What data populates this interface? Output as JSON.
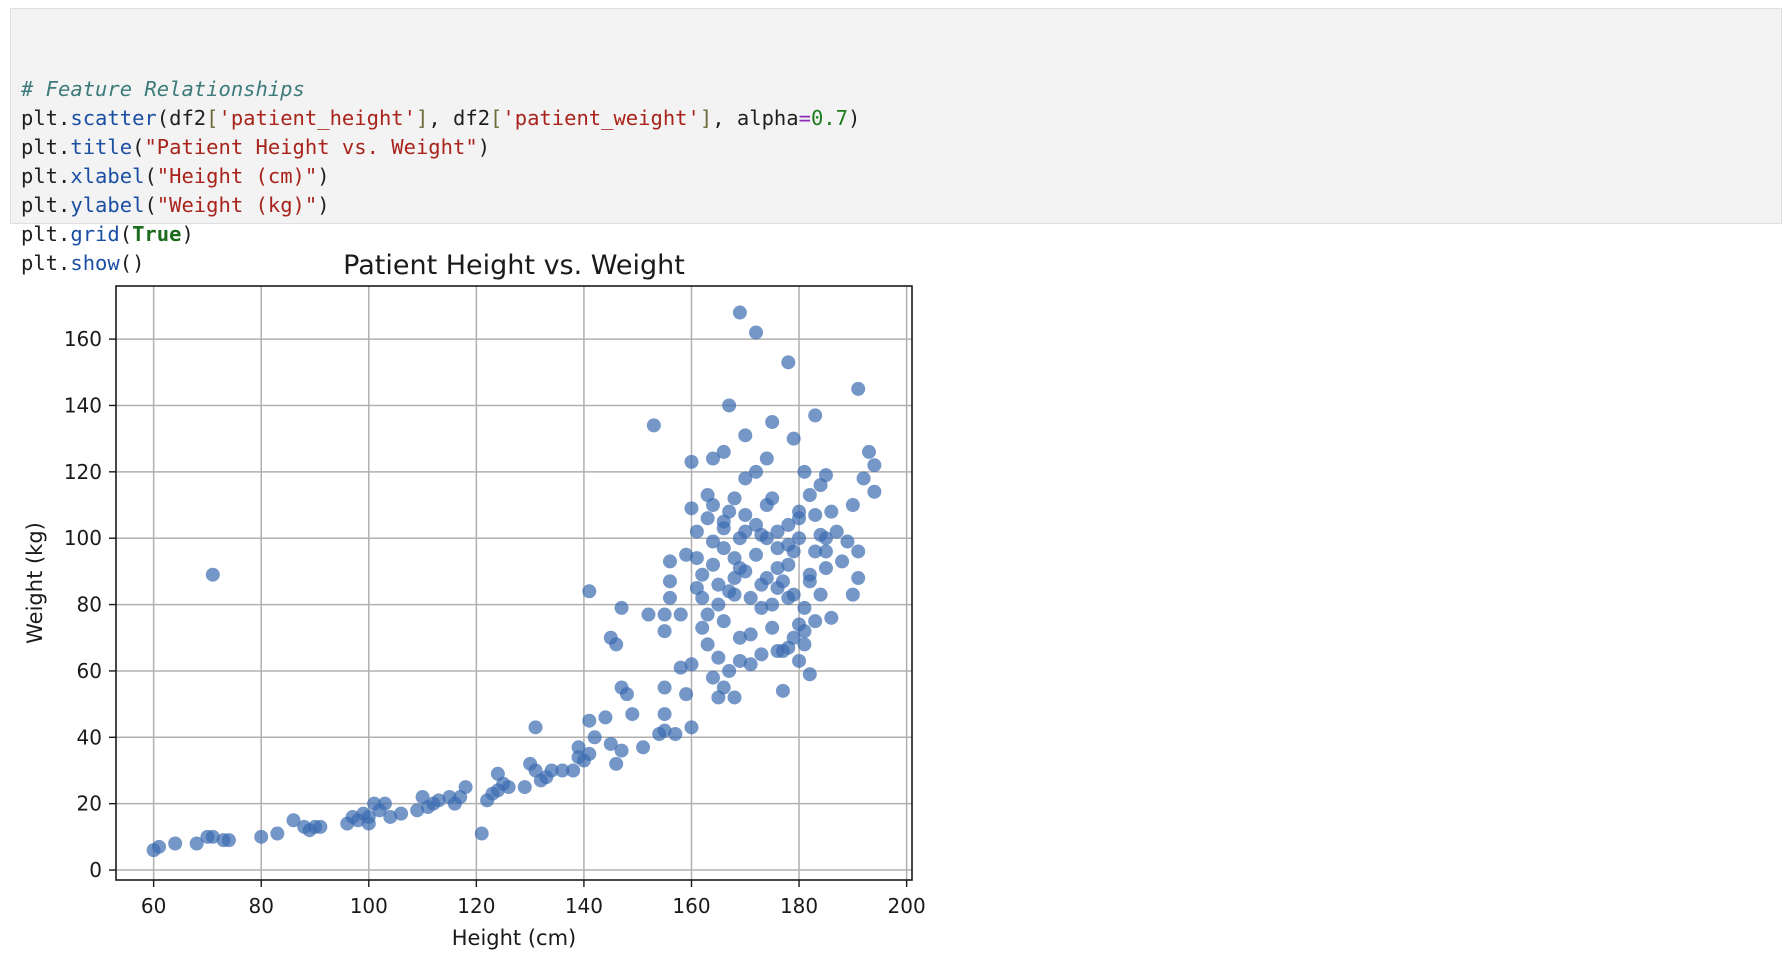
{
  "code_cell": {
    "lines": [
      [
        {
          "t": "# Feature Relationships",
          "c": "tok-comment"
        }
      ],
      [
        {
          "t": "plt",
          "c": ""
        },
        {
          "t": ".",
          "c": ""
        },
        {
          "t": "scatter",
          "c": "tok-fn"
        },
        {
          "t": "(df2",
          "c": ""
        },
        {
          "t": "[",
          "c": "tok-brk"
        },
        {
          "t": "'patient_height'",
          "c": "tok-str"
        },
        {
          "t": "]",
          "c": "tok-brk"
        },
        {
          "t": ", df2",
          "c": ""
        },
        {
          "t": "[",
          "c": "tok-brk"
        },
        {
          "t": "'patient_weight'",
          "c": "tok-str"
        },
        {
          "t": "]",
          "c": "tok-brk"
        },
        {
          "t": ", alpha",
          "c": ""
        },
        {
          "t": "=",
          "c": "tok-op"
        },
        {
          "t": "0.7",
          "c": "tok-num"
        },
        {
          "t": ")",
          "c": ""
        }
      ],
      [
        {
          "t": "plt",
          "c": ""
        },
        {
          "t": ".",
          "c": ""
        },
        {
          "t": "title",
          "c": "tok-fn"
        },
        {
          "t": "(",
          "c": ""
        },
        {
          "t": "\"Patient Height vs. Weight\"",
          "c": "tok-str"
        },
        {
          "t": ")",
          "c": ""
        }
      ],
      [
        {
          "t": "plt",
          "c": ""
        },
        {
          "t": ".",
          "c": ""
        },
        {
          "t": "xlabel",
          "c": "tok-fn"
        },
        {
          "t": "(",
          "c": ""
        },
        {
          "t": "\"Height (cm)\"",
          "c": "tok-str"
        },
        {
          "t": ")",
          "c": ""
        }
      ],
      [
        {
          "t": "plt",
          "c": ""
        },
        {
          "t": ".",
          "c": ""
        },
        {
          "t": "ylabel",
          "c": "tok-fn"
        },
        {
          "t": "(",
          "c": ""
        },
        {
          "t": "\"Weight (kg)\"",
          "c": "tok-str"
        },
        {
          "t": ")",
          "c": ""
        }
      ],
      [
        {
          "t": "plt",
          "c": ""
        },
        {
          "t": ".",
          "c": ""
        },
        {
          "t": "grid",
          "c": "tok-fn"
        },
        {
          "t": "(",
          "c": ""
        },
        {
          "t": "True",
          "c": "tok-kw"
        },
        {
          "t": ")",
          "c": ""
        }
      ],
      [
        {
          "t": "plt",
          "c": ""
        },
        {
          "t": ".",
          "c": ""
        },
        {
          "t": "show",
          "c": "tok-fn"
        },
        {
          "t": "()",
          "c": ""
        }
      ]
    ]
  },
  "chart_data": {
    "type": "scatter",
    "title": "Patient Height vs. Weight",
    "xlabel": "Height (cm)",
    "ylabel": "Weight (kg)",
    "xlim": [
      53,
      201
    ],
    "ylim": [
      -3,
      176
    ],
    "xticks": [
      60,
      80,
      100,
      120,
      140,
      160,
      180,
      200
    ],
    "yticks": [
      0,
      20,
      40,
      60,
      80,
      100,
      120,
      140,
      160
    ],
    "grid": true,
    "alpha": 0.7,
    "color": "#3a6bb0",
    "points": [
      [
        60,
        6
      ],
      [
        61,
        7
      ],
      [
        64,
        8
      ],
      [
        68,
        8
      ],
      [
        70,
        10
      ],
      [
        71,
        10
      ],
      [
        73,
        9
      ],
      [
        74,
        9
      ],
      [
        71,
        89
      ],
      [
        80,
        10
      ],
      [
        83,
        11
      ],
      [
        86,
        15
      ],
      [
        88,
        13
      ],
      [
        89,
        12
      ],
      [
        90,
        13
      ],
      [
        91,
        13
      ],
      [
        96,
        14
      ],
      [
        97,
        16
      ],
      [
        98,
        15
      ],
      [
        99,
        17
      ],
      [
        100,
        16
      ],
      [
        100,
        14
      ],
      [
        101,
        20
      ],
      [
        102,
        18
      ],
      [
        103,
        20
      ],
      [
        104,
        16
      ],
      [
        106,
        17
      ],
      [
        109,
        18
      ],
      [
        110,
        22
      ],
      [
        111,
        19
      ],
      [
        112,
        20
      ],
      [
        113,
        21
      ],
      [
        115,
        22
      ],
      [
        116,
        20
      ],
      [
        117,
        22
      ],
      [
        118,
        25
      ],
      [
        121,
        11
      ],
      [
        122,
        21
      ],
      [
        123,
        23
      ],
      [
        124,
        24
      ],
      [
        124,
        29
      ],
      [
        125,
        26
      ],
      [
        126,
        25
      ],
      [
        129,
        25
      ],
      [
        130,
        32
      ],
      [
        131,
        30
      ],
      [
        131,
        43
      ],
      [
        132,
        27
      ],
      [
        133,
        28
      ],
      [
        134,
        30
      ],
      [
        136,
        30
      ],
      [
        138,
        30
      ],
      [
        139,
        34
      ],
      [
        139,
        37
      ],
      [
        140,
        33
      ],
      [
        141,
        35
      ],
      [
        141,
        45
      ],
      [
        141,
        84
      ],
      [
        142,
        40
      ],
      [
        144,
        46
      ],
      [
        145,
        38
      ],
      [
        145,
        70
      ],
      [
        146,
        32
      ],
      [
        146,
        68
      ],
      [
        147,
        36
      ],
      [
        147,
        79
      ],
      [
        147,
        55
      ],
      [
        148,
        53
      ],
      [
        149,
        47
      ],
      [
        151,
        37
      ],
      [
        152,
        77
      ],
      [
        153,
        134
      ],
      [
        154,
        41
      ],
      [
        155,
        42
      ],
      [
        155,
        47
      ],
      [
        155,
        55
      ],
      [
        155,
        72
      ],
      [
        155,
        77
      ],
      [
        156,
        82
      ],
      [
        156,
        87
      ],
      [
        156,
        93
      ],
      [
        157,
        41
      ],
      [
        158,
        77
      ],
      [
        158,
        61
      ],
      [
        159,
        53
      ],
      [
        159,
        95
      ],
      [
        160,
        62
      ],
      [
        160,
        43
      ],
      [
        160,
        123
      ],
      [
        160,
        109
      ],
      [
        161,
        85
      ],
      [
        161,
        94
      ],
      [
        162,
        73
      ],
      [
        162,
        89
      ],
      [
        163,
        106
      ],
      [
        163,
        113
      ],
      [
        164,
        124
      ],
      [
        164,
        99
      ],
      [
        164,
        58
      ],
      [
        165,
        52
      ],
      [
        165,
        86
      ],
      [
        166,
        75
      ],
      [
        166,
        103
      ],
      [
        166,
        126
      ],
      [
        167,
        140
      ],
      [
        167,
        108
      ],
      [
        168,
        94
      ],
      [
        168,
        83
      ],
      [
        169,
        63
      ],
      [
        169,
        91
      ],
      [
        169,
        168
      ],
      [
        170,
        102
      ],
      [
        170,
        131
      ],
      [
        170,
        118
      ],
      [
        171,
        71
      ],
      [
        172,
        162
      ],
      [
        172,
        120
      ],
      [
        173,
        79
      ],
      [
        173,
        101
      ],
      [
        174,
        88
      ],
      [
        174,
        124
      ],
      [
        175,
        135
      ],
      [
        175,
        112
      ],
      [
        176,
        97
      ],
      [
        176,
        85
      ],
      [
        177,
        66
      ],
      [
        177,
        54
      ],
      [
        178,
        104
      ],
      [
        178,
        92
      ],
      [
        178,
        153
      ],
      [
        179,
        130
      ],
      [
        179,
        83
      ],
      [
        180,
        74
      ],
      [
        180,
        108
      ],
      [
        181,
        68
      ],
      [
        181,
        120
      ],
      [
        182,
        59
      ],
      [
        182,
        89
      ],
      [
        183,
        137
      ],
      [
        183,
        107
      ],
      [
        184,
        116
      ],
      [
        185,
        96
      ],
      [
        185,
        91
      ],
      [
        185,
        119
      ],
      [
        186,
        108
      ],
      [
        186,
        76
      ],
      [
        187,
        102
      ],
      [
        188,
        93
      ],
      [
        189,
        99
      ],
      [
        190,
        110
      ],
      [
        190,
        83
      ],
      [
        191,
        145
      ],
      [
        191,
        96
      ],
      [
        191,
        88
      ],
      [
        192,
        118
      ],
      [
        193,
        126
      ],
      [
        194,
        122
      ],
      [
        194,
        114
      ],
      [
        162,
        82
      ],
      [
        163,
        77
      ],
      [
        164,
        92
      ],
      [
        165,
        80
      ],
      [
        166,
        97
      ],
      [
        167,
        84
      ],
      [
        168,
        88
      ],
      [
        169,
        100
      ],
      [
        170,
        90
      ],
      [
        171,
        82
      ],
      [
        172,
        95
      ],
      [
        173,
        86
      ],
      [
        174,
        100
      ],
      [
        175,
        80
      ],
      [
        176,
        91
      ],
      [
        177,
        87
      ],
      [
        178,
        82
      ],
      [
        179,
        96
      ],
      [
        180,
        100
      ],
      [
        181,
        79
      ],
      [
        182,
        87
      ],
      [
        183,
        96
      ],
      [
        184,
        83
      ],
      [
        185,
        100
      ],
      [
        163,
        68
      ],
      [
        165,
        64
      ],
      [
        166,
        55
      ],
      [
        167,
        60
      ],
      [
        168,
        52
      ],
      [
        169,
        70
      ],
      [
        171,
        62
      ],
      [
        173,
        65
      ],
      [
        175,
        73
      ],
      [
        176,
        66
      ],
      [
        178,
        67
      ],
      [
        179,
        70
      ],
      [
        180,
        63
      ],
      [
        181,
        72
      ],
      [
        183,
        75
      ],
      [
        161,
        102
      ],
      [
        164,
        110
      ],
      [
        166,
        105
      ],
      [
        168,
        112
      ],
      [
        170,
        107
      ],
      [
        172,
        104
      ],
      [
        174,
        110
      ],
      [
        176,
        102
      ],
      [
        178,
        98
      ],
      [
        180,
        106
      ],
      [
        182,
        113
      ],
      [
        184,
        101
      ]
    ]
  }
}
